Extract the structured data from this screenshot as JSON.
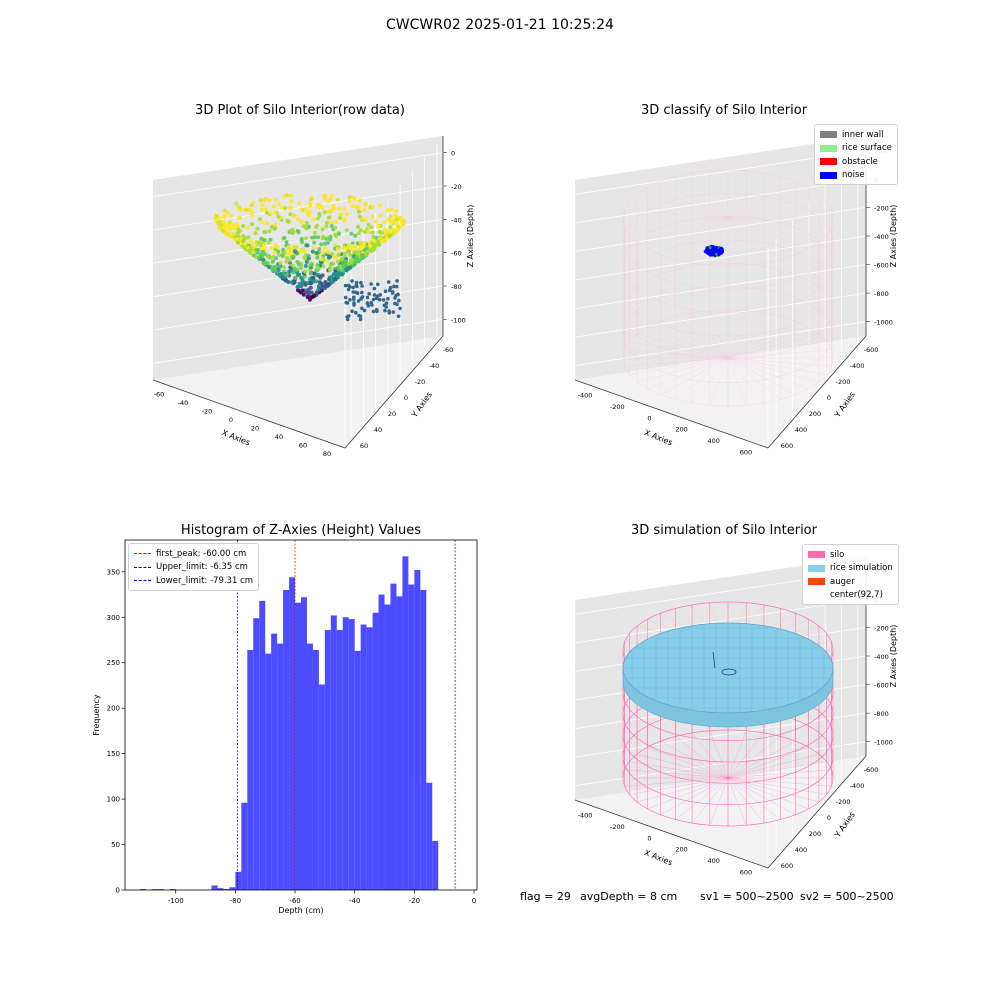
{
  "figure": {
    "title": "CWCWR02 2025-01-21 10:25:24"
  },
  "footer": {
    "flag": "flag = 29",
    "avg_depth": "avgDepth = 8 cm",
    "sv1": "sv1 = 500~2500",
    "sv2": "sv2 = 500~2500"
  },
  "colors": {
    "inner_wall": "#808080",
    "rice_surface": "#90ee90",
    "obstacle": "#ff0000",
    "noise": "#0000ff",
    "silo": "#ff69b4",
    "rice_simulation": "#87ceeb",
    "auger": "#ff4500",
    "histogram_bar": "#4b4bff",
    "first_peak_line": "#ff0000",
    "limit_line": "#0000cc"
  },
  "chart_data": [
    {
      "type": "scatter",
      "title": "3D Plot of Silo Interior(row data)",
      "xlabel": "X Axies",
      "ylabel": "Y Axies",
      "zlabel": "Z Axies (Depth)",
      "x_ticks": [
        "-60",
        "-40",
        "-20",
        "0",
        "20",
        "40",
        "60",
        "80"
      ],
      "y_ticks": [
        "-60",
        "-40",
        "-20",
        "0",
        "20",
        "40",
        "60"
      ],
      "z_ticks": [
        "0",
        "-20",
        "-40",
        "-60",
        "-80",
        "-100"
      ],
      "xlim": [
        -70,
        80
      ],
      "ylim": [
        -60,
        70
      ],
      "zlim": [
        -110,
        0
      ],
      "colormap": "viridis",
      "grid": true
    },
    {
      "type": "scatter",
      "title": "3D classify of Silo Interior",
      "xlabel": "X Axies",
      "ylabel": "Y Axies",
      "zlabel": "Z Axies (Depth)",
      "x_ticks": [
        "-400",
        "-200",
        "0",
        "200",
        "400",
        "600"
      ],
      "y_ticks": [
        "-600",
        "-400",
        "-200",
        "0",
        "200",
        "400",
        "600"
      ],
      "z_ticks": [
        "200",
        "0",
        "-200",
        "-400",
        "-600",
        "-800",
        "-1000"
      ],
      "legend": [
        "inner wall",
        "rice surface",
        "obstacle",
        "noise"
      ],
      "legend_loc": "upper right",
      "grid": true
    },
    {
      "type": "bar",
      "title": "Histogram of Z-Axies (Height) Values",
      "xlabel": "Depth (cm)",
      "ylabel": "Frequency",
      "x_ticks": [
        "-100",
        "-80",
        "-60",
        "-40",
        "-20",
        "0"
      ],
      "y_ticks": [
        "0",
        "50",
        "100",
        "150",
        "200",
        "250",
        "300",
        "350"
      ],
      "xlim": [
        -117,
        1
      ],
      "ylim": [
        0,
        385
      ],
      "bin_width": 2,
      "bin_starts": [
        -112,
        -110,
        -108,
        -106,
        -104,
        -102,
        -100,
        -98,
        -96,
        -94,
        -92,
        -90,
        -88,
        -86,
        -84,
        -82,
        -80,
        -78,
        -76,
        -74,
        -72,
        -70,
        -68,
        -66,
        -64,
        -62,
        -60,
        -58,
        -56,
        -54,
        -52,
        -50,
        -48,
        -46,
        -44,
        -42,
        -40,
        -38,
        -36,
        -34,
        -32,
        -30,
        -28,
        -26,
        -24,
        -22,
        -20,
        -18,
        -16,
        -14,
        -12,
        -10,
        -8,
        -6
      ],
      "values": [
        1,
        0,
        1,
        1,
        0,
        1,
        0,
        0,
        0,
        0,
        0,
        0,
        5,
        2,
        1,
        3,
        20,
        96,
        264,
        299,
        318,
        260,
        282,
        271,
        330,
        344,
        316,
        322,
        271,
        264,
        226,
        286,
        302,
        286,
        300,
        298,
        263,
        292,
        289,
        305,
        325,
        314,
        337,
        323,
        367,
        336,
        352,
        330,
        118,
        54,
        0,
        0,
        0,
        0
      ],
      "vlines": [
        {
          "label": "first_peak: -60.00 cm",
          "x": -60.0,
          "color": "#ff0000"
        },
        {
          "label": "Upper_limit: -6.35 cm",
          "x": -6.35,
          "color": "#0000cc"
        },
        {
          "label": "Lower_limit: -79.31 cm",
          "x": -79.31,
          "color": "#0000cc"
        }
      ],
      "legend_loc": "upper left",
      "grid": false
    },
    {
      "type": "scatter",
      "title": "3D simulation of Silo Interior",
      "xlabel": "X Axies",
      "ylabel": "Y Axies",
      "zlabel": "Z Axies (Depth)",
      "x_ticks": [
        "-400",
        "-200",
        "0",
        "200",
        "400",
        "600"
      ],
      "y_ticks": [
        "-600",
        "-400",
        "-200",
        "0",
        "200",
        "400",
        "600"
      ],
      "z_ticks": [
        "200",
        "0",
        "-200",
        "-400",
        "-600",
        "-800",
        "-1000"
      ],
      "legend": [
        "silo",
        "rice simulation",
        "auger",
        "center(92,7)"
      ],
      "legend_loc": "upper right",
      "grid": true
    }
  ]
}
